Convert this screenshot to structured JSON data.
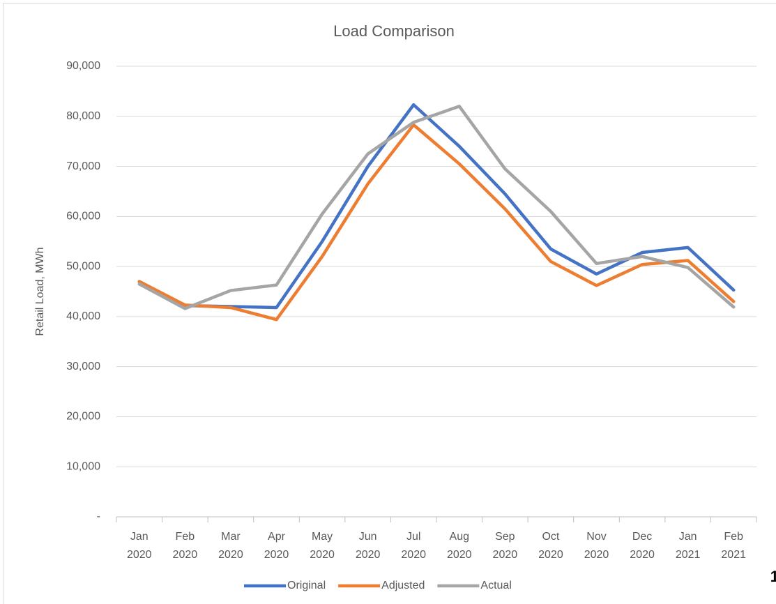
{
  "page_number": "1",
  "chart_data": {
    "type": "line",
    "title": "Load Comparison",
    "y_label": "Retail Load, MWh",
    "categories": [
      "Jan 2020",
      "Feb 2020",
      "Mar 2020",
      "Apr 2020",
      "May 2020",
      "Jun 2020",
      "Jul 2020",
      "Aug 2020",
      "Sep 2020",
      "Oct 2020",
      "Nov 2020",
      "Dec 2020",
      "Jan 2021",
      "Feb 2021"
    ],
    "series": [
      {
        "name": "Original",
        "color": "#4472c4",
        "values": [
          47000,
          42200,
          42000,
          41800,
          55000,
          70000,
          82300,
          74000,
          64500,
          53500,
          48500,
          52800,
          53800,
          45300
        ]
      },
      {
        "name": "Adjusted",
        "color": "#ed7d31",
        "values": [
          47000,
          42300,
          41800,
          39400,
          52000,
          66500,
          78300,
          70500,
          61500,
          51000,
          46200,
          50400,
          51200,
          43000
        ]
      },
      {
        "name": "Actual",
        "color": "#a5a5a5",
        "values": [
          46500,
          41600,
          45200,
          46300,
          60500,
          72500,
          78800,
          82000,
          69500,
          61000,
          50600,
          52000,
          49800,
          41900
        ]
      }
    ],
    "ylim": [
      0,
      90000
    ],
    "yticks": [
      {
        "value": 0,
        "label": "-"
      },
      {
        "value": 10000,
        "label": "10,000"
      },
      {
        "value": 20000,
        "label": "20,000"
      },
      {
        "value": 30000,
        "label": "30,000"
      },
      {
        "value": 40000,
        "label": "40,000"
      },
      {
        "value": 50000,
        "label": "50,000"
      },
      {
        "value": 60000,
        "label": "60,000"
      },
      {
        "value": 70000,
        "label": "70,000"
      },
      {
        "value": 80000,
        "label": "80,000"
      },
      {
        "value": 90000,
        "label": "90,000"
      }
    ],
    "grid": true,
    "legend": "bottom"
  }
}
